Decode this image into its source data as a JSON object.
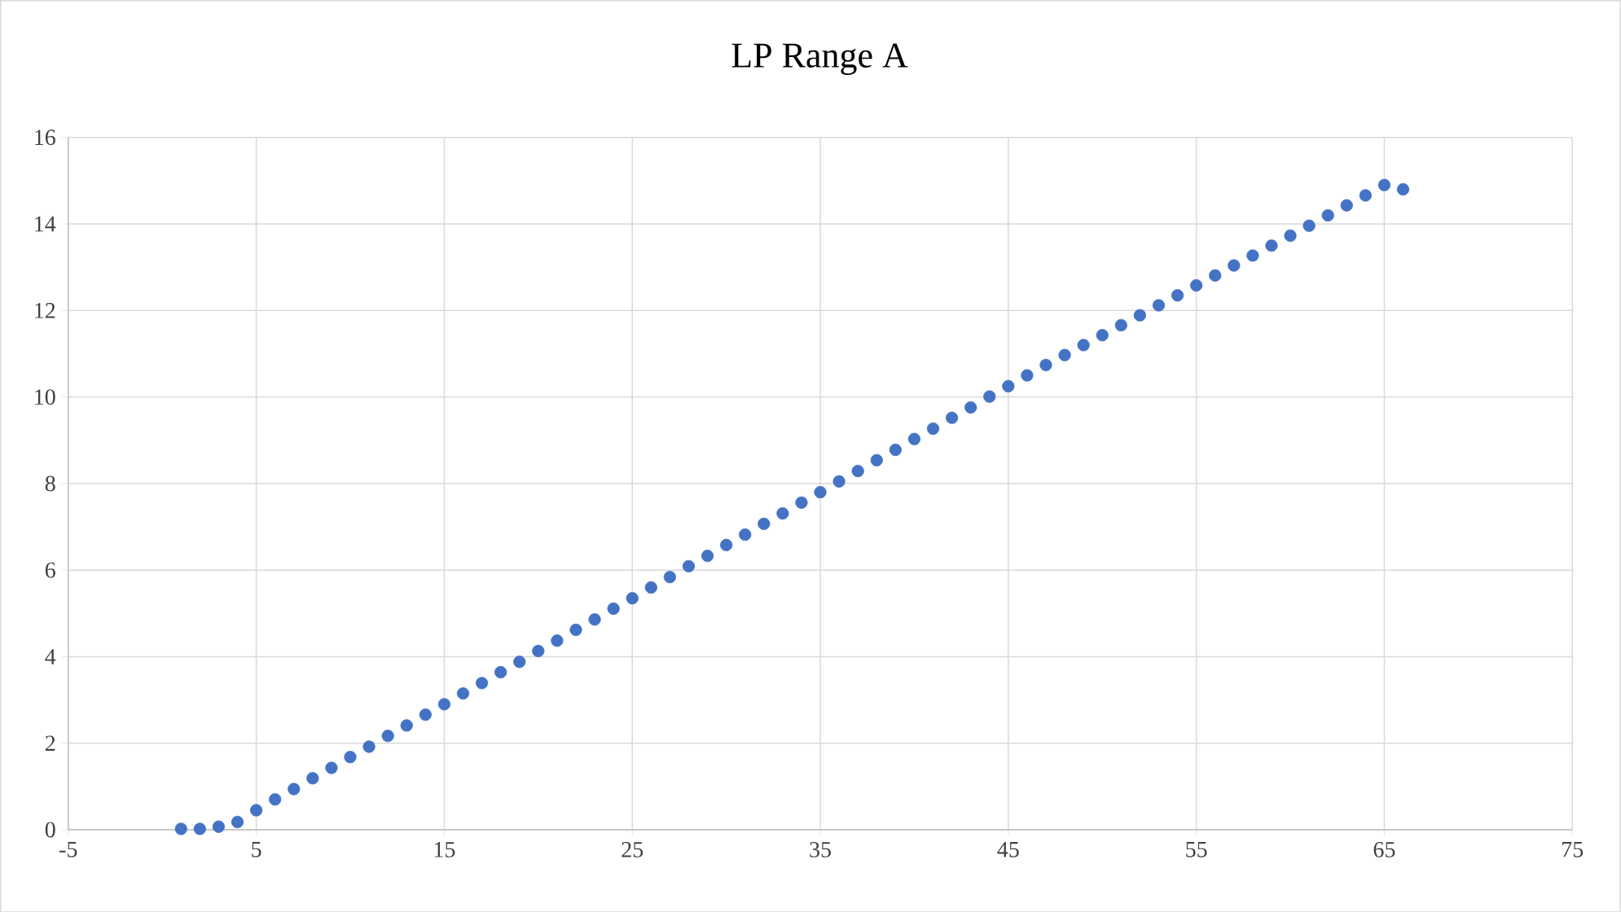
{
  "chart_data": {
    "type": "scatter",
    "title": "LP Range A",
    "x": [
      1,
      2,
      3,
      4,
      5,
      6,
      7,
      8,
      9,
      10,
      11,
      12,
      13,
      14,
      15,
      16,
      17,
      18,
      19,
      20,
      21,
      22,
      23,
      24,
      25,
      26,
      27,
      28,
      29,
      30,
      31,
      32,
      33,
      34,
      35,
      36,
      37,
      38,
      39,
      40,
      41,
      42,
      43,
      44,
      45,
      46,
      47,
      48,
      49,
      50,
      51,
      52,
      53,
      54,
      55,
      56,
      57,
      58,
      59,
      60,
      61,
      62,
      63,
      64,
      65,
      66
    ],
    "series": [
      {
        "color": "#4472c4",
        "values": [
          0.02,
          0.02,
          0.07,
          0.18,
          0.45,
          0.7,
          0.94,
          1.19,
          1.43,
          1.68,
          1.92,
          2.17,
          2.41,
          2.66,
          2.9,
          3.15,
          3.39,
          3.64,
          3.88,
          4.13,
          4.37,
          4.62,
          4.86,
          5.11,
          5.35,
          5.6,
          5.84,
          6.09,
          6.33,
          6.58,
          6.82,
          7.07,
          7.31,
          7.56,
          7.8,
          8.05,
          8.29,
          8.54,
          8.78,
          9.03,
          9.27,
          9.52,
          9.76,
          10.01,
          10.25,
          10.5,
          10.74,
          10.97,
          11.2,
          11.43,
          11.66,
          11.89,
          12.12,
          12.35,
          12.58,
          12.81,
          13.04,
          13.27,
          13.5,
          13.73,
          13.96,
          14.2,
          14.43,
          14.66,
          14.9,
          14.8
        ]
      }
    ],
    "xlim": [
      -5,
      75
    ],
    "xticks": [
      -5,
      5,
      15,
      25,
      35,
      45,
      55,
      65,
      75
    ],
    "ylim": [
      0,
      16
    ],
    "yticks": [
      0,
      2,
      4,
      6,
      8,
      10,
      12,
      14,
      16
    ],
    "grid": true,
    "marker": "circle"
  }
}
